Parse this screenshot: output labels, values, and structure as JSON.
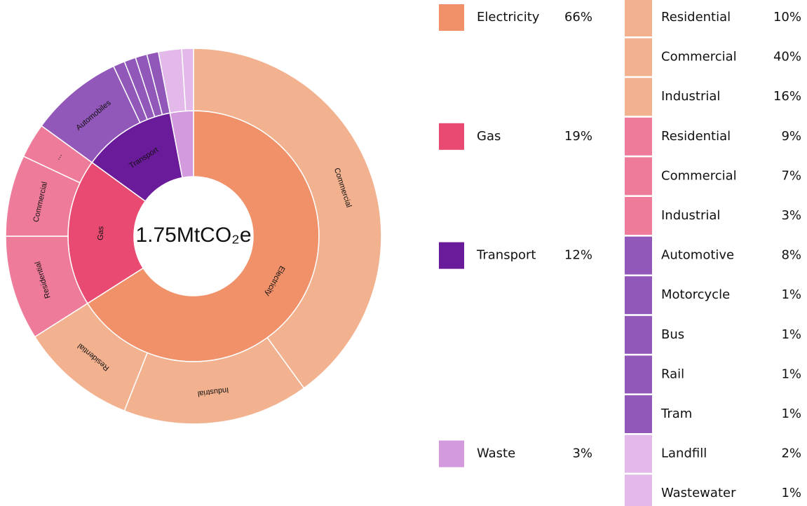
{
  "chart_data": {
    "type": "sunburst",
    "center_label": "1.75MtCO₂e",
    "sort": "descending",
    "series": [
      {
        "name": "Electricity",
        "value": 66,
        "value_label": "66%",
        "ring_label": "Electricity",
        "color": "#f0916a",
        "child_color": "#f2b18f",
        "children": [
          {
            "name": "Residential",
            "value": 10,
            "value_label": "10%",
            "ring_label": "Residential"
          },
          {
            "name": "Commercial",
            "value": 40,
            "value_label": "40%",
            "ring_label": "Commercial"
          },
          {
            "name": "Industrial",
            "value": 16,
            "value_label": "16%",
            "ring_label": "Industrial"
          }
        ]
      },
      {
        "name": "Gas",
        "value": 19,
        "value_label": "19%",
        "ring_label": "Gas",
        "color": "#e84a72",
        "child_color": "#ee7b9a",
        "children": [
          {
            "name": "Residential",
            "value": 9,
            "value_label": "9%",
            "ring_label": "Residential"
          },
          {
            "name": "Commercial",
            "value": 7,
            "value_label": "7%",
            "ring_label": "Commercial"
          },
          {
            "name": "Industrial",
            "value": 3,
            "value_label": "3%",
            "ring_label": "..."
          }
        ]
      },
      {
        "name": "Transport",
        "value": 12,
        "value_label": "12%",
        "ring_label": "Transport",
        "color": "#6a1b9a",
        "child_color": "#9157b9",
        "children": [
          {
            "name": "Automotive",
            "value": 8,
            "value_label": "8%",
            "ring_label": "Automobiles"
          },
          {
            "name": "Motorcycle",
            "value": 1,
            "value_label": "1%"
          },
          {
            "name": "Bus",
            "value": 1,
            "value_label": "1%"
          },
          {
            "name": "Rail",
            "value": 1,
            "value_label": "1%"
          },
          {
            "name": "Tram",
            "value": 1,
            "value_label": "1%"
          }
        ]
      },
      {
        "name": "Waste",
        "value": 3,
        "value_label": "3%",
        "color": "#d49ade",
        "child_color": "#e2b9e9",
        "children": [
          {
            "name": "Landfill",
            "value": 2,
            "value_label": "2%"
          },
          {
            "name": "Wastewater",
            "value": 1,
            "value_label": "1%"
          }
        ]
      }
    ]
  }
}
